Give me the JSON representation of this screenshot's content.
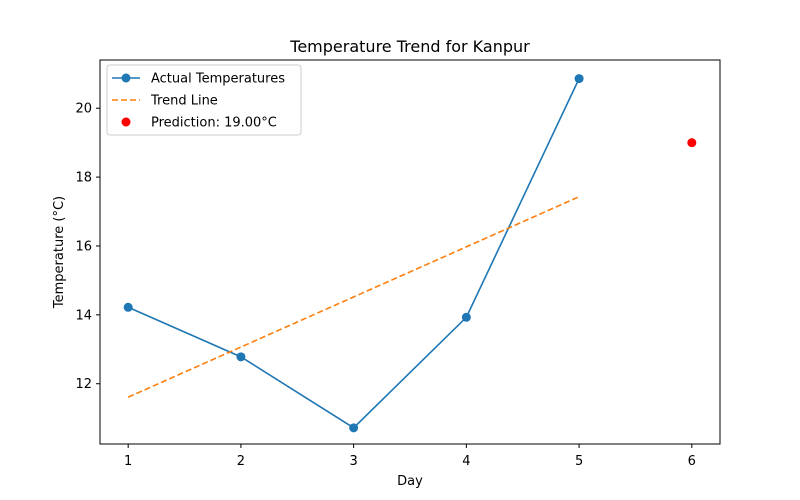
{
  "chart_data": {
    "type": "line",
    "title": "Temperature Trend for Kanpur",
    "xlabel": "Day",
    "ylabel": "Temperature (°C)",
    "xlim": [
      0.75,
      6.25
    ],
    "ylim": [
      10.25,
      21.4
    ],
    "xticks": [
      1,
      2,
      3,
      4,
      5,
      6
    ],
    "yticks": [
      12,
      14,
      16,
      18,
      20
    ],
    "grid": false,
    "legend_position": "top-left",
    "series": [
      {
        "name": "Actual Temperatures",
        "kind": "line-marker",
        "color": "#1f77b4",
        "x": [
          1,
          2,
          3,
          4,
          5
        ],
        "y": [
          14.22,
          12.78,
          10.72,
          13.93,
          20.86
        ]
      },
      {
        "name": "Trend Line",
        "kind": "dashed-line",
        "color": "#ff7f0e",
        "x": [
          1,
          5
        ],
        "y": [
          11.61,
          17.43
        ]
      },
      {
        "name": "Prediction: 19.00°C",
        "kind": "point",
        "color": "#ff0000",
        "x": [
          6
        ],
        "y": [
          19.0
        ]
      }
    ]
  }
}
